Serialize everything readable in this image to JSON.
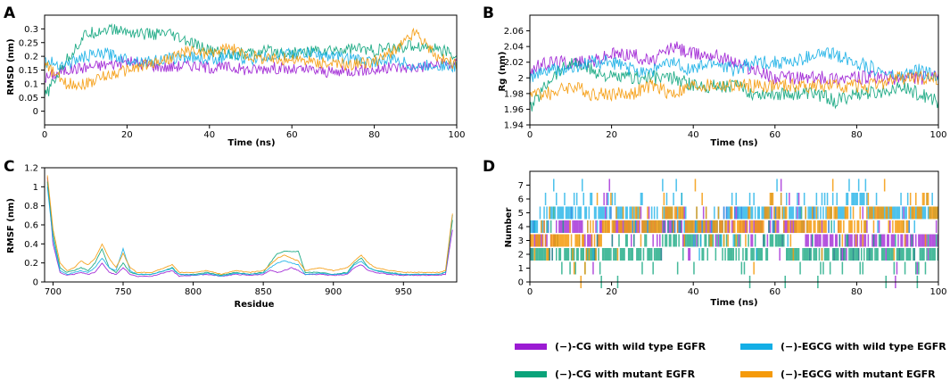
{
  "colors": {
    "cg_wt": "#9b1bd3",
    "cg_mut": "#0aa37a",
    "egcg_wt": "#13aee6",
    "egcg_mut": "#f59a0a"
  },
  "legend": {
    "cg_wt": "(−)-CG with wild type EGFR",
    "cg_mut": "(−)-CG with mutant EGFR",
    "egcg_wt": "(−)-EGCG with wild type EGFR",
    "egcg_mut": "(−)-EGCG with mutant EGFR"
  },
  "chart_data": [
    {
      "panel": "A",
      "type": "line",
      "xlabel": "Time (ns)",
      "ylabel": "RMSD (nm)",
      "xlim": [
        0,
        100
      ],
      "ylim": [
        -0.05,
        0.35
      ],
      "xticks": [
        "0",
        "20",
        "40",
        "60",
        "80",
        "100"
      ],
      "yticks": [
        "0",
        "0.05",
        "0.1",
        "0.15",
        "0.2",
        "0.25",
        "0.3"
      ],
      "x": [
        0,
        5,
        10,
        15,
        20,
        25,
        30,
        35,
        40,
        45,
        50,
        55,
        60,
        65,
        70,
        75,
        80,
        85,
        90,
        95,
        100
      ],
      "series": [
        {
          "name": "(−)-CG with wild type EGFR",
          "key": "cg_wt",
          "values": [
            0.12,
            0.15,
            0.16,
            0.17,
            0.18,
            0.17,
            0.16,
            0.17,
            0.16,
            0.16,
            0.15,
            0.16,
            0.15,
            0.15,
            0.14,
            0.15,
            0.15,
            0.16,
            0.16,
            0.17,
            0.17
          ]
        },
        {
          "name": "(−)-CG with mutant EGFR",
          "key": "cg_mut",
          "values": [
            0.05,
            0.18,
            0.28,
            0.3,
            0.29,
            0.28,
            0.28,
            0.25,
            0.22,
            0.21,
            0.21,
            0.22,
            0.21,
            0.22,
            0.22,
            0.23,
            0.22,
            0.23,
            0.24,
            0.23,
            0.2
          ]
        },
        {
          "name": "(−)-EGCG with wild type EGFR",
          "key": "egcg_wt",
          "values": [
            0.18,
            0.17,
            0.2,
            0.21,
            0.19,
            0.18,
            0.19,
            0.2,
            0.19,
            0.2,
            0.19,
            0.2,
            0.21,
            0.21,
            0.2,
            0.19,
            0.18,
            0.19,
            0.16,
            0.17,
            0.16
          ]
        },
        {
          "name": "(−)-EGCG with mutant EGFR",
          "key": "egcg_mut",
          "values": [
            0.17,
            0.1,
            0.1,
            0.13,
            0.15,
            0.17,
            0.19,
            0.22,
            0.21,
            0.23,
            0.2,
            0.19,
            0.19,
            0.18,
            0.17,
            0.17,
            0.18,
            0.22,
            0.29,
            0.2,
            0.17
          ]
        }
      ]
    },
    {
      "panel": "B",
      "type": "line",
      "xlabel": "Time (ns)",
      "ylabel": "Rg (nm)",
      "xlim": [
        0,
        100
      ],
      "ylim": [
        1.94,
        2.08
      ],
      "xticks": [
        "0",
        "20",
        "40",
        "60",
        "80",
        "100"
      ],
      "yticks": [
        "1.94",
        "1.96",
        "1.98",
        "2",
        "2.02",
        "2.04",
        "2.06"
      ],
      "x": [
        0,
        5,
        10,
        15,
        20,
        25,
        30,
        35,
        40,
        45,
        50,
        55,
        60,
        65,
        70,
        75,
        80,
        85,
        90,
        95,
        100
      ],
      "series": [
        {
          "name": "(−)-CG with wild type EGFR",
          "key": "cg_wt",
          "values": [
            2.01,
            2.02,
            2.02,
            2.02,
            2.03,
            2.03,
            2.02,
            2.04,
            2.03,
            2.03,
            2.02,
            2.01,
            2.0,
            2.0,
            2.0,
            2.0,
            2.0,
            2.0,
            2.0,
            2.0,
            2.0
          ]
        },
        {
          "name": "(−)-CG with mutant EGFR",
          "key": "cg_mut",
          "values": [
            1.96,
            2.0,
            2.02,
            2.01,
            2.0,
            2.0,
            2.0,
            2.0,
            1.99,
            1.99,
            1.99,
            1.98,
            1.98,
            1.98,
            1.98,
            1.97,
            1.98,
            1.98,
            1.99,
            1.98,
            1.97
          ]
        },
        {
          "name": "(−)-EGCG with wild type EGFR",
          "key": "egcg_wt",
          "values": [
            2.0,
            2.01,
            2.01,
            2.02,
            2.02,
            2.01,
            2.01,
            2.02,
            2.01,
            2.02,
            2.01,
            2.02,
            2.02,
            2.02,
            2.03,
            2.03,
            2.02,
            2.01,
            2.0,
            2.01,
            2.0
          ]
        },
        {
          "name": "(−)-EGCG with mutant EGFR",
          "key": "egcg_mut",
          "values": [
            1.98,
            1.98,
            1.99,
            1.98,
            1.98,
            1.98,
            1.99,
            1.98,
            1.99,
            1.99,
            1.99,
            1.99,
            1.99,
            1.99,
            1.99,
            1.99,
            1.99,
            1.99,
            2.0,
            2.0,
            2.0
          ]
        }
      ]
    },
    {
      "panel": "C",
      "type": "line",
      "xlabel": "Residue",
      "ylabel": "RMSF (nm)",
      "xlim": [
        694,
        988
      ],
      "ylim": [
        0,
        1.2
      ],
      "xticks": [
        "700",
        "750",
        "800",
        "850",
        "900",
        "950"
      ],
      "yticks": [
        "0",
        "0.2",
        "0.4",
        "0.6",
        "0.8",
        "1",
        "1.2"
      ],
      "x": [
        696,
        700,
        705,
        710,
        715,
        720,
        725,
        730,
        735,
        740,
        745,
        750,
        755,
        760,
        770,
        780,
        785,
        790,
        800,
        810,
        820,
        830,
        840,
        850,
        855,
        860,
        865,
        870,
        875,
        880,
        890,
        900,
        910,
        915,
        920,
        925,
        930,
        940,
        950,
        960,
        970,
        975,
        980,
        985
      ],
      "series": [
        {
          "name": "(−)-CG with wild type EGFR",
          "key": "cg_wt",
          "values": [
            1.1,
            0.4,
            0.1,
            0.07,
            0.08,
            0.1,
            0.08,
            0.1,
            0.2,
            0.1,
            0.08,
            0.15,
            0.08,
            0.06,
            0.06,
            0.1,
            0.12,
            0.06,
            0.07,
            0.08,
            0.06,
            0.08,
            0.07,
            0.08,
            0.12,
            0.1,
            0.12,
            0.15,
            0.12,
            0.08,
            0.08,
            0.07,
            0.08,
            0.15,
            0.18,
            0.12,
            0.1,
            0.08,
            0.07,
            0.07,
            0.07,
            0.07,
            0.08,
            0.55
          ]
        },
        {
          "name": "(−)-CG with mutant EGFR",
          "key": "cg_mut",
          "values": [
            1.05,
            0.5,
            0.15,
            0.1,
            0.12,
            0.15,
            0.12,
            0.2,
            0.35,
            0.15,
            0.1,
            0.2,
            0.1,
            0.08,
            0.08,
            0.12,
            0.15,
            0.08,
            0.08,
            0.1,
            0.07,
            0.1,
            0.08,
            0.1,
            0.2,
            0.3,
            0.32,
            0.32,
            0.32,
            0.1,
            0.1,
            0.08,
            0.1,
            0.2,
            0.25,
            0.15,
            0.12,
            0.1,
            0.08,
            0.08,
            0.08,
            0.08,
            0.1,
            0.65
          ]
        },
        {
          "name": "(−)-EGCG with wild type EGFR",
          "key": "egcg_wt",
          "values": [
            1.0,
            0.45,
            0.12,
            0.08,
            0.1,
            0.12,
            0.1,
            0.15,
            0.25,
            0.15,
            0.12,
            0.35,
            0.12,
            0.08,
            0.08,
            0.12,
            0.14,
            0.08,
            0.07,
            0.09,
            0.06,
            0.09,
            0.08,
            0.09,
            0.15,
            0.2,
            0.22,
            0.2,
            0.18,
            0.08,
            0.09,
            0.08,
            0.09,
            0.18,
            0.22,
            0.15,
            0.12,
            0.09,
            0.08,
            0.08,
            0.08,
            0.08,
            0.1,
            0.7
          ]
        },
        {
          "name": "(−)-EGCG with mutant EGFR",
          "key": "egcg_mut",
          "values": [
            1.12,
            0.55,
            0.2,
            0.12,
            0.15,
            0.22,
            0.18,
            0.25,
            0.4,
            0.25,
            0.15,
            0.3,
            0.15,
            0.1,
            0.1,
            0.15,
            0.18,
            0.1,
            0.1,
            0.12,
            0.08,
            0.12,
            0.1,
            0.12,
            0.18,
            0.25,
            0.28,
            0.25,
            0.22,
            0.12,
            0.15,
            0.12,
            0.15,
            0.22,
            0.28,
            0.2,
            0.15,
            0.12,
            0.1,
            0.1,
            0.1,
            0.1,
            0.12,
            0.72
          ]
        }
      ]
    },
    {
      "panel": "D",
      "type": "bar",
      "xlabel": "Time (ns)",
      "ylabel": "Number",
      "xlim": [
        0,
        100
      ],
      "ylim": [
        0,
        8
      ],
      "xticks": [
        "0",
        "20",
        "40",
        "60",
        "80",
        "100"
      ],
      "yticks": [
        "0",
        "1",
        "2",
        "3",
        "4",
        "5",
        "6",
        "7"
      ],
      "x": [
        0,
        5,
        10,
        15,
        20,
        25,
        30,
        35,
        40,
        45,
        50,
        55,
        60,
        65,
        70,
        75,
        80,
        85,
        90,
        95,
        100
      ],
      "series": [
        {
          "name": "(−)-CG with wild type EGFR",
          "key": "cg_wt",
          "values": [
            3,
            3,
            4,
            3,
            4,
            4,
            4,
            4,
            4,
            4,
            4,
            4,
            4,
            4,
            3,
            3,
            3,
            3,
            3,
            3,
            3
          ]
        },
        {
          "name": "(−)-CG with mutant EGFR",
          "key": "cg_mut",
          "values": [
            2,
            2,
            2,
            2,
            2,
            2,
            2,
            3,
            3,
            3,
            2,
            2,
            3,
            2,
            2,
            2,
            2,
            2,
            2,
            2,
            2
          ]
        },
        {
          "name": "(−)-EGCG with wild type EGFR",
          "key": "egcg_wt",
          "values": [
            4,
            5,
            5,
            5,
            5,
            5,
            4,
            5,
            4,
            4,
            5,
            5,
            5,
            5,
            5,
            5,
            6,
            5,
            5,
            5,
            5
          ]
        },
        {
          "name": "(−)-EGCG with mutant EGFR",
          "key": "egcg_mut",
          "values": [
            3,
            3,
            3,
            3,
            4,
            4,
            4,
            5,
            4,
            4,
            4,
            4,
            5,
            4,
            4,
            5,
            4,
            5,
            4,
            5,
            5
          ]
        }
      ]
    }
  ]
}
